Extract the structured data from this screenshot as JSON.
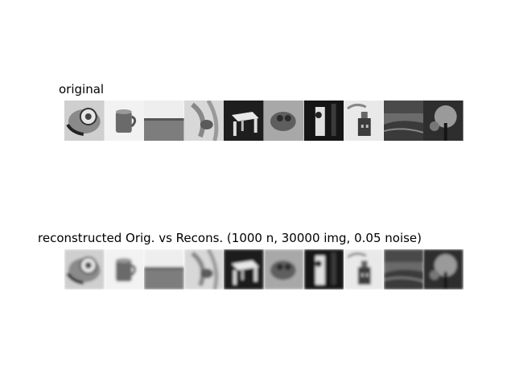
{
  "titles": {
    "original": "original",
    "reconstructed": "reconstructed Orig. vs Recons. (1000 n, 30000 img, 0.05 noise)"
  },
  "tiles": [
    {
      "name": "telephone"
    },
    {
      "name": "mug"
    },
    {
      "name": "horizon"
    },
    {
      "name": "fabric"
    },
    {
      "name": "table"
    },
    {
      "name": "animal"
    },
    {
      "name": "figure"
    },
    {
      "name": "building"
    },
    {
      "name": "landscape"
    },
    {
      "name": "tree"
    }
  ],
  "colors": {
    "background": "#ffffff",
    "text": "#000000"
  }
}
